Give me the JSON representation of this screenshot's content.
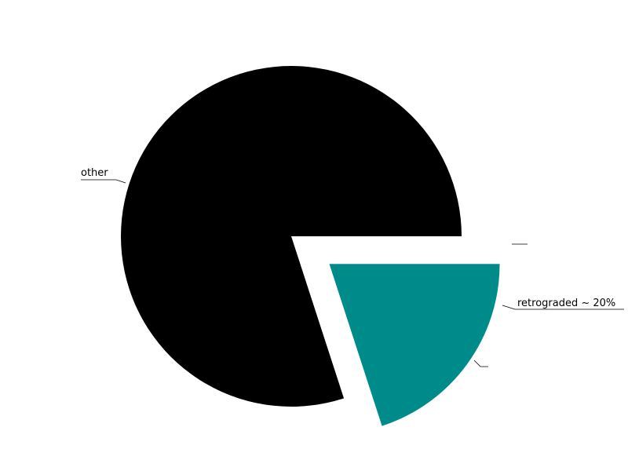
{
  "chart_data": {
    "type": "pie",
    "title": "",
    "slices": [
      {
        "label": "retrograded ~ 20%",
        "value": 20,
        "color": "#008b8b",
        "exploded": true
      },
      {
        "label": "other",
        "value": 80,
        "color": "#000000",
        "exploded": false
      }
    ]
  }
}
